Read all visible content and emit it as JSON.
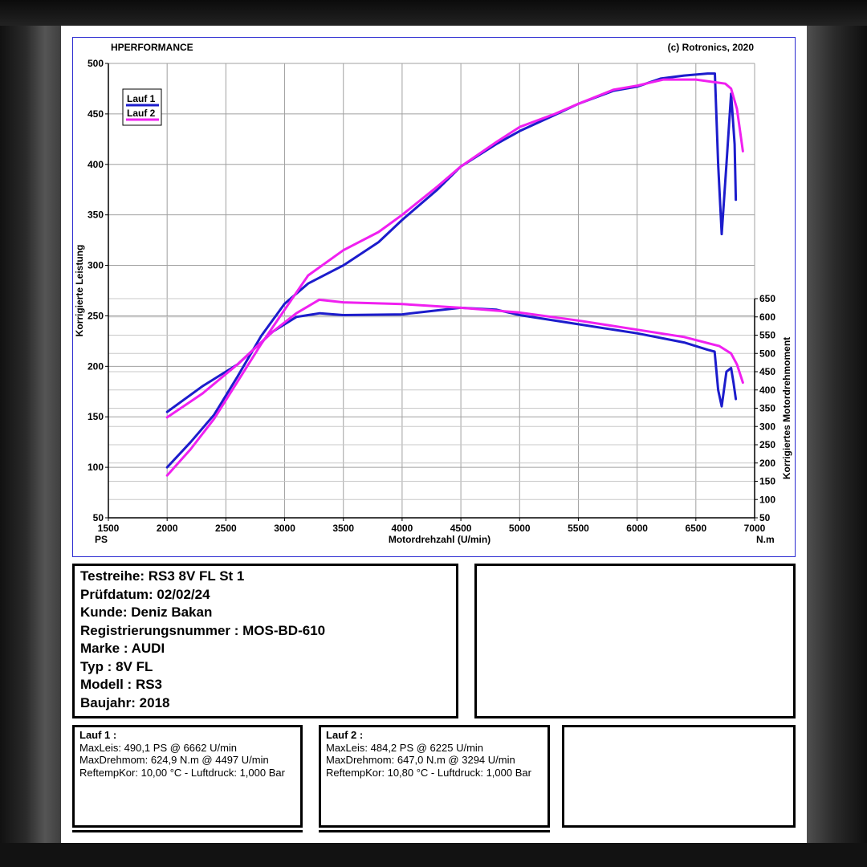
{
  "header": {
    "left": "HPERFORMANCE",
    "right": "(c) Rotronics, 2020"
  },
  "chart_data": {
    "type": "line",
    "title": "",
    "xlabel": "Motordrehzahl (U/min)",
    "x_unit_left": "PS",
    "x_unit_right": "N.m",
    "ylabel_left": "Korrigierte Leistung",
    "ylabel_right": "Korrigiertes Motordrehmoment",
    "xlim": [
      1500,
      7000
    ],
    "ylim_left": [
      50,
      500
    ],
    "ylim_right": [
      50,
      650
    ],
    "x_ticks": [
      "1500",
      "2000",
      "2500",
      "3000",
      "3500",
      "4000",
      "4500",
      "5000",
      "5500",
      "6000",
      "6500",
      "7000"
    ],
    "y_left_ticks": [
      "50",
      "100",
      "150",
      "200",
      "250",
      "300",
      "350",
      "400",
      "450",
      "500"
    ],
    "y_right_ticks": [
      "50",
      "100",
      "150",
      "200",
      "250",
      "300",
      "350",
      "400",
      "450",
      "500",
      "550",
      "600",
      "650"
    ],
    "grid": true,
    "legend_position": "top-left",
    "legend": [
      "Lauf 1",
      "Lauf 2"
    ],
    "colors": {
      "Lauf 1": "#1c1ccc",
      "Lauf 2": "#f020f0",
      "frame": "#2a2ad0",
      "grid": "#a0a0a0"
    },
    "series": [
      {
        "name": "Lauf 1",
        "quantity": "Leistung (PS)",
        "axis": "left",
        "points": [
          [
            2000,
            100
          ],
          [
            2200,
            125
          ],
          [
            2400,
            152
          ],
          [
            2600,
            190
          ],
          [
            2800,
            230
          ],
          [
            3000,
            262
          ],
          [
            3200,
            282
          ],
          [
            3500,
            300
          ],
          [
            3800,
            323
          ],
          [
            4000,
            345
          ],
          [
            4300,
            375
          ],
          [
            4500,
            398
          ],
          [
            4800,
            420
          ],
          [
            5000,
            433
          ],
          [
            5300,
            449
          ],
          [
            5500,
            460
          ],
          [
            5800,
            473
          ],
          [
            6000,
            477
          ],
          [
            6200,
            485
          ],
          [
            6400,
            488
          ],
          [
            6600,
            490
          ],
          [
            6662,
            490
          ],
          [
            6690,
            400
          ],
          [
            6720,
            331
          ],
          [
            6760,
            400
          ],
          [
            6800,
            470
          ],
          [
            6830,
            420
          ],
          [
            6840,
            365
          ]
        ]
      },
      {
        "name": "Lauf 2",
        "quantity": "Leistung (PS)",
        "axis": "left",
        "points": [
          [
            2000,
            92
          ],
          [
            2200,
            118
          ],
          [
            2400,
            148
          ],
          [
            2600,
            185
          ],
          [
            2800,
            222
          ],
          [
            3000,
            256
          ],
          [
            3200,
            290
          ],
          [
            3500,
            315
          ],
          [
            3800,
            333
          ],
          [
            4000,
            350
          ],
          [
            4300,
            378
          ],
          [
            4500,
            398
          ],
          [
            4800,
            422
          ],
          [
            5000,
            437
          ],
          [
            5300,
            450
          ],
          [
            5500,
            460
          ],
          [
            5800,
            474
          ],
          [
            6000,
            478
          ],
          [
            6225,
            484
          ],
          [
            6500,
            484
          ],
          [
            6750,
            480
          ],
          [
            6800,
            475
          ],
          [
            6850,
            455
          ],
          [
            6900,
            413
          ]
        ]
      },
      {
        "name": "Lauf 1",
        "quantity": "Drehmoment (N.m)",
        "axis": "right",
        "points": [
          [
            2000,
            340
          ],
          [
            2300,
            410
          ],
          [
            2600,
            470
          ],
          [
            2900,
            560
          ],
          [
            3100,
            600
          ],
          [
            3300,
            610
          ],
          [
            3500,
            605
          ],
          [
            4000,
            607
          ],
          [
            4497,
            625
          ],
          [
            4800,
            620
          ],
          [
            5000,
            605
          ],
          [
            5500,
            580
          ],
          [
            6000,
            555
          ],
          [
            6400,
            530
          ],
          [
            6600,
            510
          ],
          [
            6660,
            505
          ],
          [
            6690,
            400
          ],
          [
            6720,
            355
          ],
          [
            6760,
            450
          ],
          [
            6800,
            460
          ],
          [
            6820,
            420
          ],
          [
            6840,
            375
          ]
        ]
      },
      {
        "name": "Lauf 2",
        "quantity": "Drehmoment (N.m)",
        "axis": "right",
        "points": [
          [
            2000,
            325
          ],
          [
            2300,
            390
          ],
          [
            2600,
            470
          ],
          [
            2900,
            560
          ],
          [
            3100,
            610
          ],
          [
            3294,
            647
          ],
          [
            3500,
            640
          ],
          [
            4000,
            635
          ],
          [
            4500,
            625
          ],
          [
            5000,
            612
          ],
          [
            5500,
            590
          ],
          [
            6000,
            565
          ],
          [
            6400,
            545
          ],
          [
            6700,
            520
          ],
          [
            6800,
            500
          ],
          [
            6850,
            470
          ],
          [
            6900,
            420
          ]
        ]
      }
    ]
  },
  "details": {
    "testreihe": "Testreihe: RS3 8V FL St 1",
    "pruefdatum": "Prüfdatum: 02/02/24",
    "kunde": "Kunde: Deniz Bakan",
    "registrierung": "Registrierungsnummer  : MOS-BD-610",
    "marke": "Marke  : AUDI",
    "typ": "Typ  : 8V FL",
    "modell": "Modell  : RS3",
    "baujahr": "Baujahr: 2018"
  },
  "runs": [
    {
      "title": "Lauf 1 :",
      "maxleis": "MaxLeis: 490,1 PS @ 6662 U/min",
      "maxdreh": "MaxDrehmom: 624,9 N.m @ 4497 U/min",
      "reftemp": "ReftempKor: 10,00 °C - Luftdruck: 1,000 Bar"
    },
    {
      "title": "Lauf 2 :",
      "maxleis": "MaxLeis: 484,2 PS @ 6225 U/min",
      "maxdreh": "MaxDrehmom: 647,0 N.m @ 3294 U/min",
      "reftemp": "ReftempKor: 10,80 °C - Luftdruck: 1,000 Bar"
    }
  ]
}
